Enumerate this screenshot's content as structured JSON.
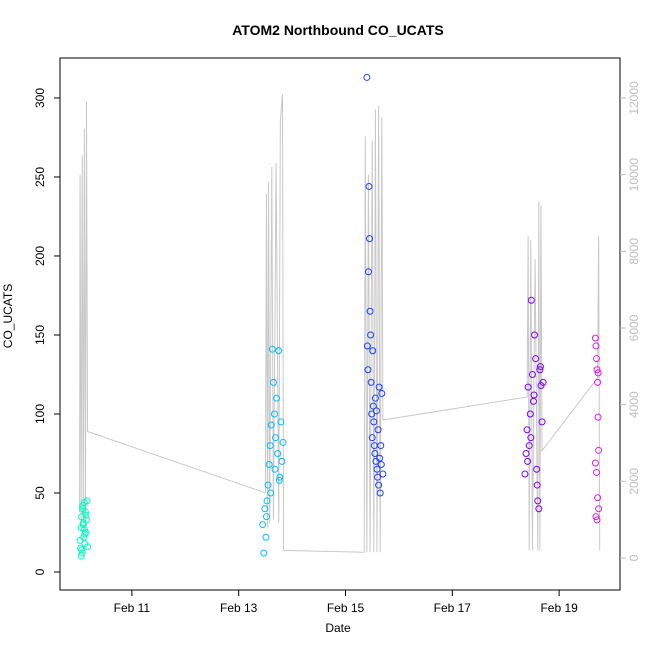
{
  "chart_data": {
    "type": "scatter",
    "title": "ATOM2 Northbound CO_UCATS",
    "x_label": "Date",
    "y_label": "CO_UCATS",
    "xlim": [
      9.654,
      20.14
    ],
    "ylim": [
      -11.4,
      325.3
    ],
    "y2lim": [
      -835,
      13043
    ],
    "xticks": [
      {
        "value": 11,
        "label": "Feb 11"
      },
      {
        "value": 13,
        "label": "Feb 13"
      },
      {
        "value": 15,
        "label": "Feb 15"
      },
      {
        "value": 17,
        "label": "Feb 17"
      },
      {
        "value": 19,
        "label": "Feb 19"
      }
    ],
    "yticks": [
      0,
      50,
      100,
      150,
      200,
      250,
      300
    ],
    "y2ticks": [
      0,
      2000,
      4000,
      6000,
      8000,
      10000,
      12000
    ],
    "y2_color": "#bebebe",
    "series": [
      {
        "type": "line",
        "axis": "y2",
        "color": "#c8c8c8",
        "x": [
          10.02,
          10.03,
          10.05,
          10.07,
          10.09,
          10.11,
          10.13,
          10.15,
          10.17,
          13.5,
          13.52,
          13.54,
          13.56,
          13.58,
          13.62,
          13.65,
          13.7,
          13.75,
          13.78,
          13.82,
          13.84,
          15.35,
          15.37,
          15.4,
          15.43,
          15.46,
          15.5,
          15.53,
          15.56,
          15.59,
          15.62,
          15.65,
          15.68,
          15.7,
          18.4,
          18.42,
          18.44,
          18.47,
          18.5,
          18.55,
          18.6,
          18.62,
          18.64,
          18.66,
          18.68,
          19.72,
          19.74,
          19.76
        ],
        "values": [
          1200,
          10000,
          800,
          10500,
          900,
          11200,
          700,
          11900,
          3300,
          1700,
          9500,
          800,
          9800,
          900,
          10200,
          1000,
          10300,
          900,
          11400,
          12100,
          200,
          150,
          11000,
          150,
          10000,
          150,
          10900,
          150,
          11700,
          150,
          11800,
          150,
          11500,
          3600,
          4200,
          8400,
          200,
          8300,
          200,
          7800,
          200,
          9300,
          200,
          9200,
          2800,
          4700,
          8400,
          200
        ]
      },
      {
        "type": "scatter",
        "color": "#00ffbf",
        "x": [
          10.03,
          10.04,
          10.05,
          10.06,
          10.07,
          10.08,
          10.09,
          10.1,
          10.11,
          10.12,
          10.13,
          10.14,
          10.15,
          10.16,
          10.17,
          10.05,
          10.08,
          10.11,
          10.14,
          10.06,
          10.09,
          10.12
        ],
        "values": [
          20,
          15,
          28,
          35,
          12,
          40,
          30,
          22,
          44,
          18,
          38,
          25,
          33,
          45,
          16,
          10,
          42,
          27,
          36,
          14,
          31,
          24
        ]
      },
      {
        "type": "scatter",
        "color": "#00bfff",
        "x": [
          13.45,
          13.47,
          13.49,
          13.51,
          13.53,
          13.55,
          13.57,
          13.59,
          13.61,
          13.63,
          13.65,
          13.67,
          13.69,
          13.71,
          13.73,
          13.75,
          13.77,
          13.79,
          13.81,
          13.83,
          13.52,
          13.6,
          13.68,
          13.76
        ],
        "values": [
          30,
          12,
          40,
          22,
          45,
          55,
          68,
          80,
          93,
          141,
          120,
          100,
          85,
          110,
          75,
          140,
          60,
          95,
          70,
          82,
          35,
          50,
          65,
          58
        ]
      },
      {
        "type": "scatter",
        "color": "#1f3fff",
        "x": [
          15.4,
          15.41,
          15.42,
          15.43,
          15.44,
          15.45,
          15.46,
          15.47,
          15.48,
          15.49,
          15.5,
          15.51,
          15.52,
          15.53,
          15.54,
          15.55,
          15.56,
          15.57,
          15.58,
          15.59,
          15.6,
          15.61,
          15.62,
          15.63,
          15.64,
          15.65,
          15.66,
          15.67,
          15.68,
          15.7
        ],
        "values": [
          313,
          143,
          128,
          190,
          244,
          211,
          165,
          150,
          120,
          100,
          85,
          140,
          105,
          95,
          80,
          75,
          110,
          70,
          102,
          65,
          60,
          90,
          55,
          117,
          72,
          50,
          80,
          68,
          113,
          62
        ]
      },
      {
        "type": "scatter",
        "color": "#7f00ff",
        "x": [
          18.36,
          18.38,
          18.4,
          18.42,
          18.44,
          18.46,
          18.48,
          18.5,
          18.52,
          18.54,
          18.56,
          18.58,
          18.6,
          18.62,
          18.64,
          18.66,
          18.68,
          18.7,
          18.41,
          18.47,
          18.53,
          18.59,
          18.65
        ],
        "values": [
          62,
          75,
          90,
          117,
          80,
          100,
          172,
          125,
          108,
          150,
          135,
          65,
          45,
          40,
          128,
          118,
          95,
          120,
          70,
          85,
          112,
          55,
          130
        ]
      },
      {
        "type": "scatter",
        "color": "#e31ae3",
        "x": [
          19.68,
          19.69,
          19.7,
          19.71,
          19.72,
          19.73,
          19.74,
          19.68,
          19.7,
          19.72,
          19.74,
          19.69,
          19.71,
          19.73
        ],
        "values": [
          148,
          143,
          135,
          128,
          120,
          98,
          77,
          69,
          63,
          47,
          40,
          35,
          33,
          126
        ]
      }
    ]
  }
}
